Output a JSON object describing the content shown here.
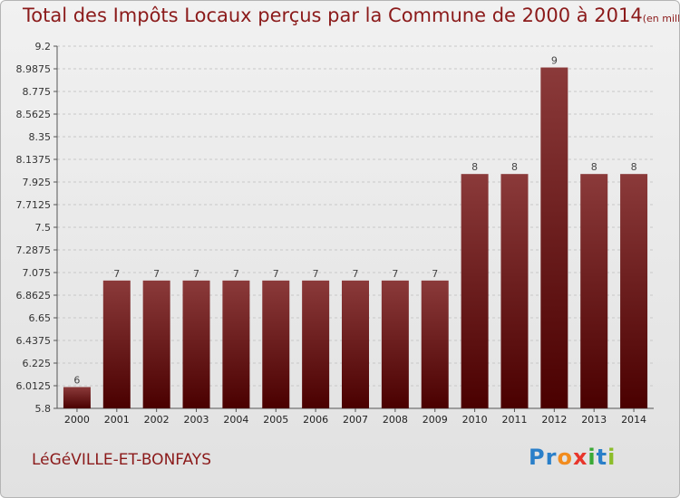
{
  "chart_data": {
    "type": "bar",
    "title": "Total des Impôts Locaux perçus par la Commune de 2000 à 2014",
    "subtitle": "(en milliers d'€)",
    "categories": [
      "2000",
      "2001",
      "2002",
      "2003",
      "2004",
      "2005",
      "2006",
      "2007",
      "2008",
      "2009",
      "2010",
      "2011",
      "2012",
      "2013",
      "2014"
    ],
    "values": [
      6.0,
      7.0,
      7.0,
      7.0,
      7.0,
      7.0,
      7.0,
      7.0,
      7.0,
      7.0,
      8.0,
      8.0,
      9.0,
      8.0,
      8.0
    ],
    "data_labels": [
      "6",
      "7",
      "7",
      "7",
      "7",
      "7",
      "7",
      "7",
      "7",
      "7",
      "8",
      "8",
      "9",
      "8",
      "8"
    ],
    "ylim": [
      5.8,
      9.2
    ],
    "yticks": [
      "5.8",
      "6.0125",
      "6.225",
      "6.4375",
      "6.65",
      "6.8625",
      "7.075",
      "7.2875",
      "7.5",
      "7.7125",
      "7.925",
      "8.1375",
      "8.35",
      "8.5625",
      "8.775",
      "8.9875",
      "9.2"
    ],
    "xlabel": "",
    "ylabel": "",
    "grid": "horizontal dashed",
    "colors": {
      "bar_top": "#8b3a3a",
      "bar_bottom": "#4a0000",
      "title": "#8b1a1a"
    }
  },
  "commune_name": "LéGéVILLE-ET-BONFAYS",
  "logo": {
    "letters": [
      "P",
      "r",
      "o",
      "x",
      "i",
      "t",
      "i"
    ],
    "colors": [
      "#2a7fc9",
      "#2a7fc9",
      "#f28c1e",
      "#e8352b",
      "#3aa935",
      "#2a7fc9",
      "#8cbd2a"
    ]
  }
}
